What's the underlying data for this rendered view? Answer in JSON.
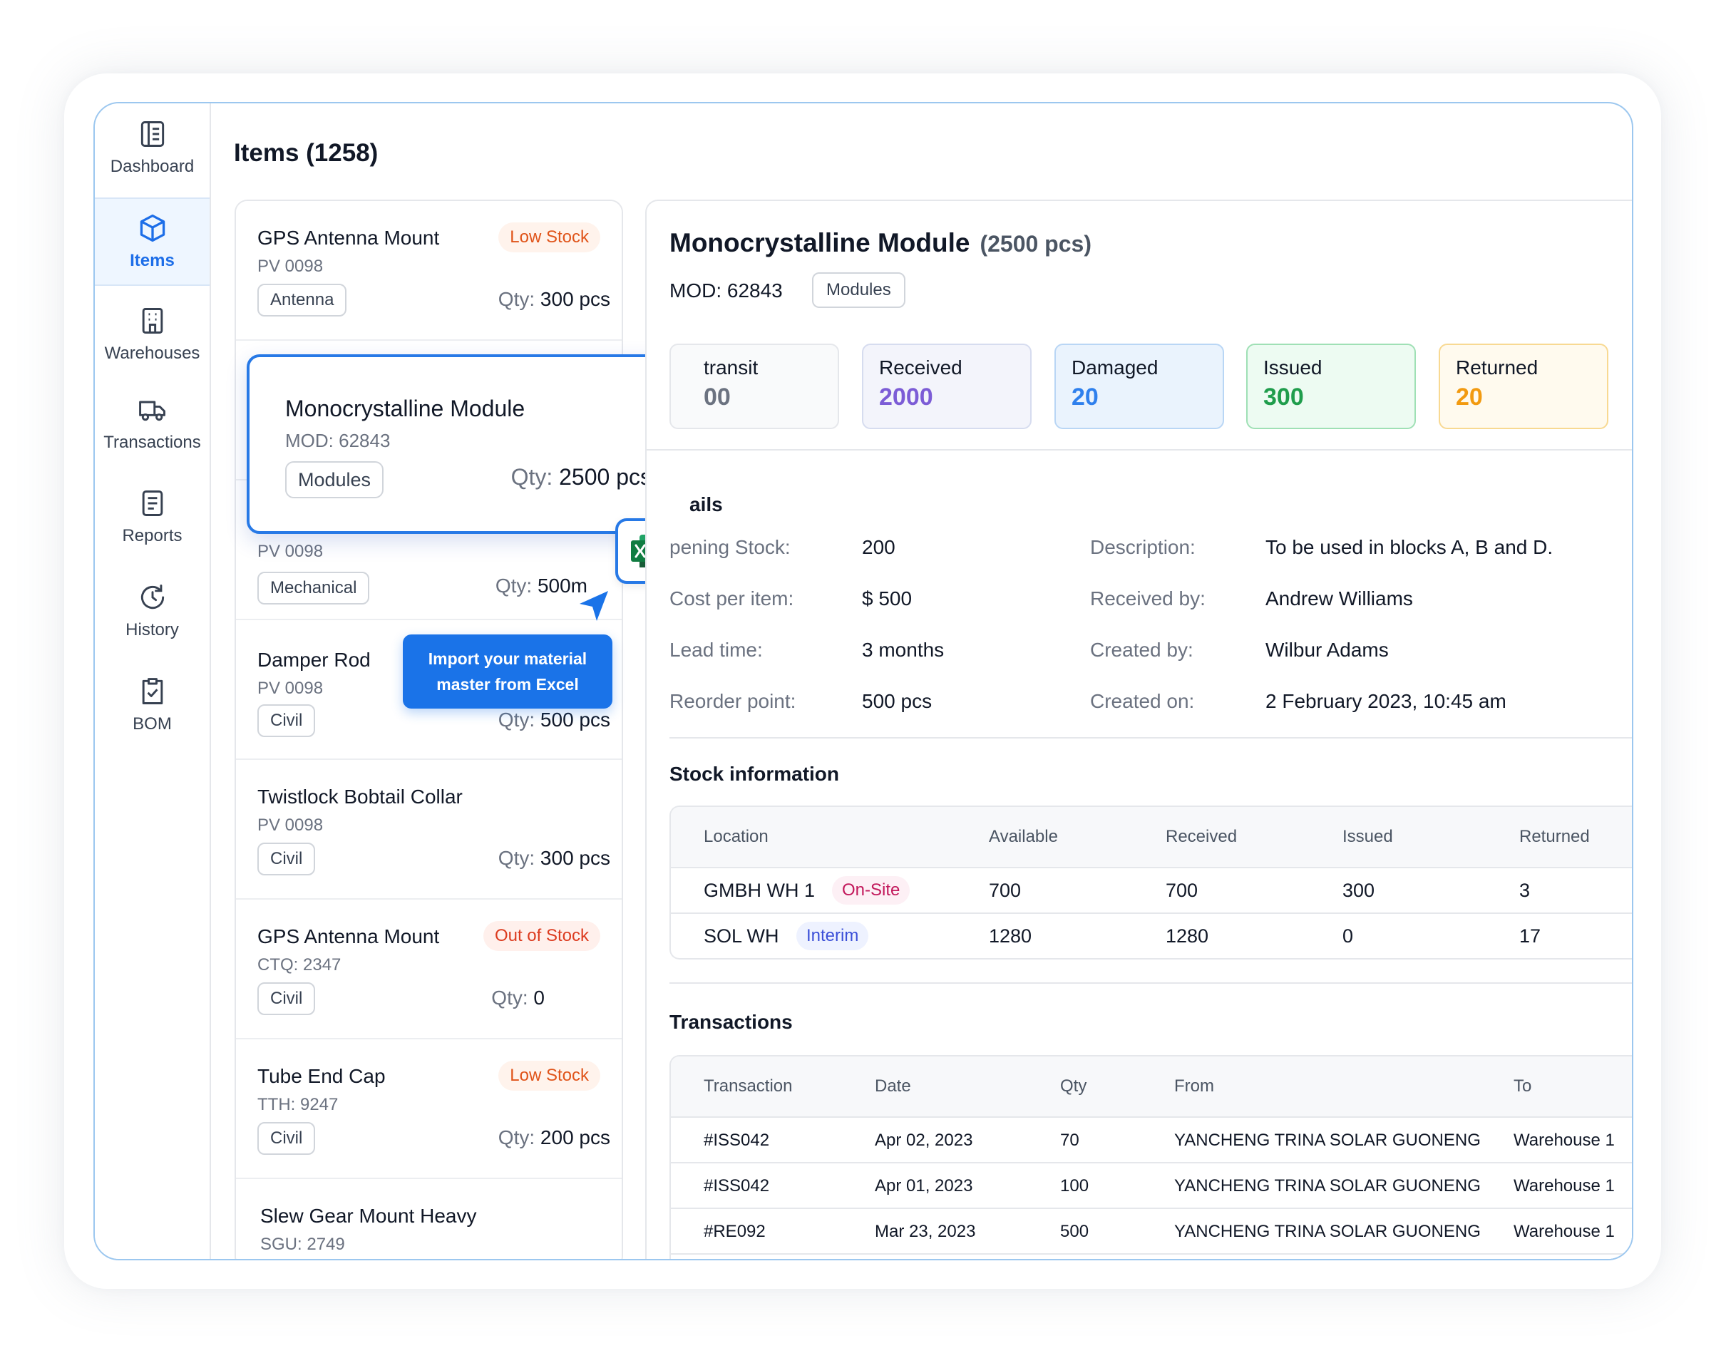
{
  "sidebar": {
    "items": [
      {
        "label": "Dashboard",
        "icon": "layout-icon"
      },
      {
        "label": "Items",
        "icon": "cube-icon",
        "active": true
      },
      {
        "label": "Warehouses",
        "icon": "building-icon"
      },
      {
        "label": "Transactions",
        "icon": "truck-icon"
      },
      {
        "label": "Reports",
        "icon": "document-icon"
      },
      {
        "label": "History",
        "icon": "history-icon"
      },
      {
        "label": "BOM",
        "icon": "clipboard-check-icon"
      }
    ]
  },
  "header": {
    "title": "Items (1258)"
  },
  "item_list": [
    {
      "name": "GPS Antenna Mount",
      "code": "PV 0098",
      "tag": "Antenna",
      "qty_label": "Qty:",
      "qty": "300 pcs",
      "badge": "Low Stock"
    },
    {
      "name": "",
      "code": "PV 0098",
      "tag": "Mechanical",
      "qty_label": "Qty:",
      "qty": "500m",
      "badge": ""
    },
    {
      "name": "Damper Rod",
      "code": "PV 0098",
      "tag": "Civil",
      "qty_label": "Qty:",
      "qty": "500 pcs",
      "badge": ""
    },
    {
      "name": "Twistlock Bobtail Collar",
      "code": "PV 0098",
      "tag": "Civil",
      "qty_label": "Qty:",
      "qty": "300 pcs",
      "badge": ""
    },
    {
      "name": "GPS Antenna Mount",
      "code": "CTQ: 2347",
      "tag": "Civil",
      "qty_label": "Qty:",
      "qty": "0",
      "badge": "Out of Stock"
    },
    {
      "name": "Tube End Cap",
      "code": "TTH: 9247",
      "tag": "Civil",
      "qty_label": "Qty:",
      "qty": "200 pcs",
      "badge": "Low Stock"
    },
    {
      "name": "Slew Gear Mount Heavy",
      "code": "SGU: 2749",
      "tag": "",
      "qty_label": "",
      "qty": "",
      "badge": ""
    }
  ],
  "selected_card": {
    "name": "Monocrystalline Module",
    "code": "MOD: 62843",
    "tag": "Modules",
    "qty_label": "Qty:",
    "qty": "2500 pcs"
  },
  "excel": {
    "icon": "excel-icon"
  },
  "tooltip": {
    "text": "Import your material master from Excel"
  },
  "detail": {
    "title": "Monocrystalline Module",
    "qty": "(2500 pcs)",
    "code": "MOD: 62843",
    "category": "Modules",
    "stats": [
      {
        "label": "transit",
        "value": "00",
        "color": "#6b7280",
        "bg": "#f9fafb",
        "border": "#e5e7eb"
      },
      {
        "label": "Received",
        "value": "2000",
        "color": "#7c5cd6",
        "bg": "#f3f4fb",
        "border": "#d6dcef"
      },
      {
        "label": "Damaged",
        "value": "20",
        "color": "#2f80ed",
        "bg": "#eaf3fd",
        "border": "#b9d6f5"
      },
      {
        "label": "Issued",
        "value": "300",
        "color": "#1f9d4c",
        "bg": "#edfbf2",
        "border": "#9fe0b5"
      },
      {
        "label": "Returned",
        "value": "20",
        "color": "#f29a10",
        "bg": "#fffaee",
        "border": "#f8d992"
      }
    ],
    "details_title": "ails",
    "details_left": [
      {
        "label": "pening Stock:",
        "value": "200"
      },
      {
        "label": "Cost per item:",
        "value": "$ 500"
      },
      {
        "label": "Lead time:",
        "value": "3 months"
      },
      {
        "label": "Reorder point:",
        "value": "500 pcs"
      }
    ],
    "details_right": [
      {
        "label": "Description:",
        "value": "To be used in blocks A, B and D."
      },
      {
        "label": "Received by:",
        "value": "Andrew Williams"
      },
      {
        "label": "Created by:",
        "value": "Wilbur Adams"
      },
      {
        "label": "Created on:",
        "value": "2 February 2023, 10:45 am"
      }
    ],
    "stock_title": "Stock information",
    "stock_headers": [
      "Location",
      "Available",
      "Received",
      "Issued",
      "Returned"
    ],
    "stock_rows": [
      {
        "location": "GMBH WH 1",
        "pill": "On-Site",
        "available": "700",
        "received": "700",
        "issued": "300",
        "returned": "3"
      },
      {
        "location": "SOL WH",
        "pill": "Interim",
        "available": "1280",
        "received": "1280",
        "issued": "0",
        "returned": "17"
      }
    ],
    "tx_title": "Transactions",
    "tx_headers": [
      "Transaction",
      "Date",
      "Qty",
      "From",
      "To"
    ],
    "tx_rows": [
      {
        "id": "#ISS042",
        "date": "Apr 02, 2023",
        "qty": "70",
        "from": "YANCHENG TRINA SOLAR GUONENG",
        "to": "Warehouse 1"
      },
      {
        "id": "#ISS042",
        "date": "Apr 01, 2023",
        "qty": "100",
        "from": "YANCHENG TRINA SOLAR GUONENG",
        "to": "Warehouse 1"
      },
      {
        "id": "#RE092",
        "date": "Mar 23, 2023",
        "qty": "500",
        "from": "YANCHENG TRINA SOLAR GUONENG",
        "to": "Warehouse 1"
      }
    ]
  }
}
